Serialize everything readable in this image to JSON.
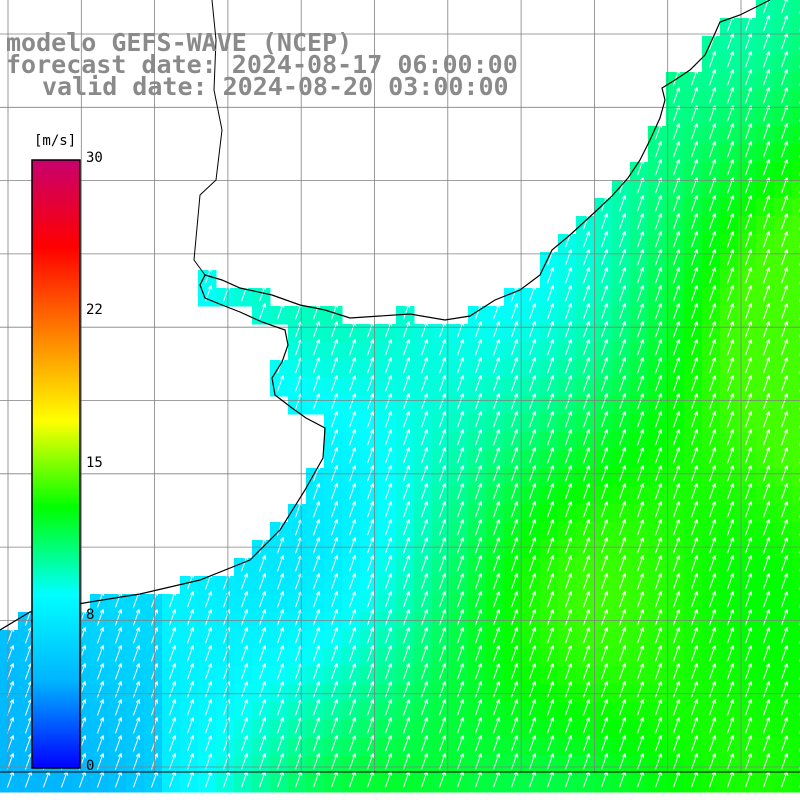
{
  "title": {
    "model": "modelo GEFS-WAVE (NCEP)",
    "forecast": "forecast date: 2024-08-17 06:00:00",
    "valid": "valid date: 2024-08-20 03:00:00"
  },
  "colorbar": {
    "unit": "[m/s]",
    "min": 0,
    "max": 30,
    "labels": [
      "30",
      "22",
      "15",
      "8",
      "0"
    ],
    "colors": [
      "#0000ff",
      "#00b4ff",
      "#00ffff",
      "#00ff00",
      "#ffff00",
      "#ff8000",
      "#ff0000",
      "#c8006e"
    ]
  },
  "field": {
    "variable": "wind speed",
    "arrow_direction": "north-northeast",
    "ocean_speed_range_ms": [
      3,
      14
    ]
  },
  "map_colors": {
    "land": "#ffffff",
    "coastline": "#000000",
    "grid": "#808080",
    "arrows": "#ffffff"
  }
}
